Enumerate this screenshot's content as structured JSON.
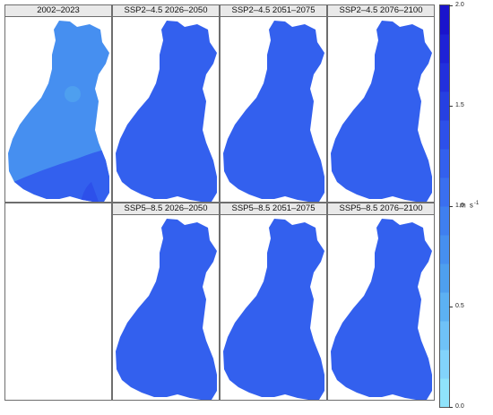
{
  "chart_data": {
    "type": "heatmap",
    "panels": [
      {
        "title": "2002–2023",
        "mean_value": 0.85,
        "has_map": true,
        "variant": "hist"
      },
      {
        "title": "SSP2–4.5 2026–2050",
        "mean_value": 1.15,
        "has_map": true,
        "variant": "flat"
      },
      {
        "title": "SSP2–4.5 2051–2075",
        "mean_value": 1.15,
        "has_map": true,
        "variant": "flat"
      },
      {
        "title": "SSP2–4.5 2076–2100",
        "mean_value": 1.15,
        "has_map": true,
        "variant": "flat"
      },
      {
        "title": "",
        "mean_value": null,
        "has_map": false,
        "variant": "empty"
      },
      {
        "title": "SSP5–8.5 2026–2050",
        "mean_value": 1.15,
        "has_map": true,
        "variant": "flat"
      },
      {
        "title": "SSP5–8.5 2051–2075",
        "mean_value": 1.15,
        "has_map": true,
        "variant": "flat"
      },
      {
        "title": "SSP5–8.5 2076–2100",
        "mean_value": 1.15,
        "has_map": true,
        "variant": "flat"
      }
    ],
    "colorbar": {
      "range": [
        0.0,
        2.0
      ],
      "ticks": [
        "0.0",
        "0.5",
        "1.0",
        "1.5",
        "2.0"
      ],
      "tick_values": [
        0.0,
        0.5,
        1.0,
        1.5,
        2.0
      ],
      "unit": "m s",
      "unit_exponent": "-1",
      "colors": [
        "#8fe3fb",
        "#82d3fb",
        "#6fc2f7",
        "#5cb1f3",
        "#4e9fef",
        "#468ff0",
        "#3f7ff0",
        "#3a6ff0",
        "#3360ee",
        "#2d50ea",
        "#2640e2",
        "#2230dd",
        "#1e22d6",
        "#1a14cd"
      ]
    }
  }
}
